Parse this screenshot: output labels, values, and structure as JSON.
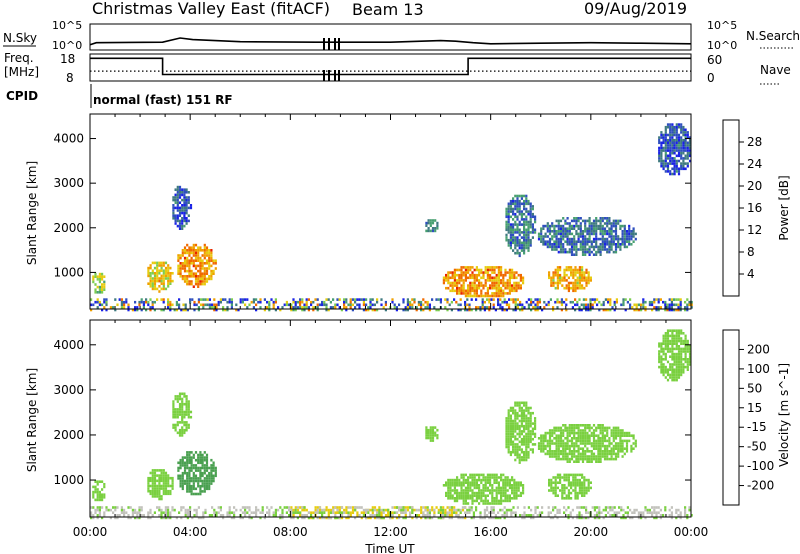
{
  "header": {
    "site_title": "Christmas Valley East (fitACF)",
    "beam_label": "Beam 13",
    "date": "09/Aug/2019"
  },
  "strips": {
    "nsky_label": "N.Sky",
    "nsky_ticks": [
      "10^5",
      "10^0"
    ],
    "nsearch_label": "N.Search",
    "nsearch_ticks": [
      "10^5",
      "10^0"
    ],
    "freq_label_line1": "Freq.",
    "freq_label_line2": "[MHz]",
    "freq_ticks": [
      "18",
      "8"
    ],
    "nave_label": "Nave",
    "nave_ticks": [
      "60",
      "0"
    ],
    "cpid_label": "CPID",
    "cpid_value": "normal (fast) 151 RF"
  },
  "colors": {
    "power_scale": [
      "#1a22e6",
      "#2f4fbe",
      "#3f7a80",
      "#48a070",
      "#7ccd50",
      "#e6cc10",
      "#f0a000",
      "#f06a00",
      "#e82000"
    ],
    "velocity_scale": [
      "#1a22e6",
      "#2f4fbe",
      "#3a7a80",
      "#4aa050",
      "#7ad040",
      "#c2c2bc",
      "#e6cc10",
      "#f0a000",
      "#f06a00",
      "#e82000"
    ]
  },
  "chart_data": [
    {
      "type": "line",
      "panel": "N.Sky / N.Search",
      "x_unit": "hours UT",
      "ylim": [
        "10^0",
        "10^5"
      ],
      "scale": "log",
      "series": [
        {
          "name": "N.Sky",
          "x": [
            0,
            0.25,
            2.9,
            3.6,
            4.1,
            6,
            9,
            12,
            14,
            14.6,
            15.3,
            16,
            18,
            20,
            22,
            24
          ],
          "values": [
            "10^1",
            "10^1.4",
            "10^1.5",
            "10^2.3",
            "10^2.0",
            "10^1.6",
            "10^1.5",
            "10^1.5",
            "10^1.8",
            "10^1.7",
            "10^1.4",
            "10^1.2",
            "10^1.3",
            "10^1.4",
            "10^1.3",
            "10^1.2"
          ]
        }
      ]
    },
    {
      "type": "line",
      "panel": "Freq / Nave",
      "x_unit": "hours UT",
      "series": [
        {
          "name": "Freq.",
          "unit": "MHz",
          "x": [
            0,
            2.9,
            2.9,
            15.1,
            15.1,
            24
          ],
          "values": [
            16.4,
            16.4,
            10.4,
            10.4,
            16.4,
            16.4
          ]
        },
        {
          "name": "Nave",
          "x": [
            0,
            24
          ],
          "values": [
            22,
            22
          ]
        }
      ],
      "freq_range": [
        8,
        18
      ],
      "nave_range": [
        0,
        60
      ]
    },
    {
      "type": "heatmap",
      "panel": "Power",
      "x": [
        0,
        24
      ],
      "xticks": [
        "00:00",
        "04:00",
        "08:00",
        "12:00",
        "16:00",
        "20:00",
        "00:00"
      ],
      "xlabel": "Time UT",
      "ylabel": "Slant Range [km]",
      "yticks": [
        "1000",
        "2000",
        "3000",
        "4000"
      ],
      "ylim": [
        180,
        4550
      ],
      "colorbar": {
        "label": "Power [dB]",
        "ticks": [
          "4",
          "8",
          "12",
          "16",
          "20",
          "24",
          "28"
        ],
        "range": [
          0,
          32
        ]
      },
      "echo_regions": [
        {
          "t": [
            0.0,
            0.6
          ],
          "range_km": [
            550,
            1050
          ],
          "power_db": 18
        },
        {
          "t": [
            2.2,
            3.3
          ],
          "range_km": [
            600,
            1300
          ],
          "power_db": 20
        },
        {
          "t": [
            3.4,
            5.0
          ],
          "range_km": [
            700,
            1700
          ],
          "power_db": 24
        },
        {
          "t": [
            3.2,
            4.0
          ],
          "range_km": [
            2000,
            3000
          ],
          "power_db": 6
        },
        {
          "t": [
            13.3,
            13.9
          ],
          "range_km": [
            1900,
            2250
          ],
          "power_db": 10
        },
        {
          "t": [
            14.0,
            17.3
          ],
          "range_km": [
            450,
            1200
          ],
          "power_db": 24
        },
        {
          "t": [
            16.5,
            17.8
          ],
          "range_km": [
            1400,
            2800
          ],
          "power_db": 8
        },
        {
          "t": [
            18.2,
            20.0
          ],
          "range_km": [
            600,
            1200
          ],
          "power_db": 22
        },
        {
          "t": [
            17.8,
            21.8
          ],
          "range_km": [
            1400,
            2300
          ],
          "power_db": 8
        },
        {
          "t": [
            22.6,
            24.0
          ],
          "range_km": [
            3200,
            4400
          ],
          "power_db": 6
        },
        {
          "t": [
            0.0,
            24.0
          ],
          "range_km": [
            180,
            420
          ],
          "power_db": 12
        }
      ]
    },
    {
      "type": "heatmap",
      "panel": "Velocity",
      "x": [
        0,
        24
      ],
      "xticks": [
        "00:00",
        "04:00",
        "08:00",
        "12:00",
        "16:00",
        "20:00",
        "00:00"
      ],
      "xlabel": "Time UT",
      "ylabel": "Slant Range [km]",
      "yticks": [
        "1000",
        "2000",
        "3000",
        "4000"
      ],
      "ylim": [
        180,
        4550
      ],
      "colorbar": {
        "label": "Velocity [m s^-1]",
        "ticks": [
          "200",
          "100",
          "50",
          "15",
          "-15",
          "-50",
          "-100",
          "-200"
        ],
        "range": [
          -250,
          250
        ]
      },
      "echo_regions": [
        {
          "t": [
            0.0,
            0.6
          ],
          "range_km": [
            550,
            1050
          ],
          "velocity_ms": 0
        },
        {
          "t": [
            2.2,
            3.3
          ],
          "range_km": [
            600,
            1300
          ],
          "velocity_ms": 0
        },
        {
          "t": [
            3.4,
            5.0
          ],
          "range_km": [
            700,
            1700
          ],
          "velocity_ms": 30
        },
        {
          "t": [
            3.2,
            4.0
          ],
          "range_km": [
            2000,
            3000
          ],
          "velocity_ms": 0
        },
        {
          "t": [
            13.3,
            13.9
          ],
          "range_km": [
            1900,
            2250
          ],
          "velocity_ms": 0
        },
        {
          "t": [
            14.0,
            17.3
          ],
          "range_km": [
            450,
            1200
          ],
          "velocity_ms": 0
        },
        {
          "t": [
            16.5,
            17.8
          ],
          "range_km": [
            1400,
            2800
          ],
          "velocity_ms": 0
        },
        {
          "t": [
            18.2,
            20.0
          ],
          "range_km": [
            600,
            1200
          ],
          "velocity_ms": 0
        },
        {
          "t": [
            17.8,
            21.8
          ],
          "range_km": [
            1400,
            2300
          ],
          "velocity_ms": 0
        },
        {
          "t": [
            22.6,
            24.0
          ],
          "range_km": [
            3200,
            4400
          ],
          "velocity_ms": 0
        },
        {
          "t": [
            8.0,
            15.0
          ],
          "range_km": [
            180,
            420
          ],
          "velocity_ms": -80
        },
        {
          "t": [
            0.0,
            24.0
          ],
          "range_km": [
            180,
            420
          ],
          "velocity_ms": -20
        }
      ]
    }
  ]
}
